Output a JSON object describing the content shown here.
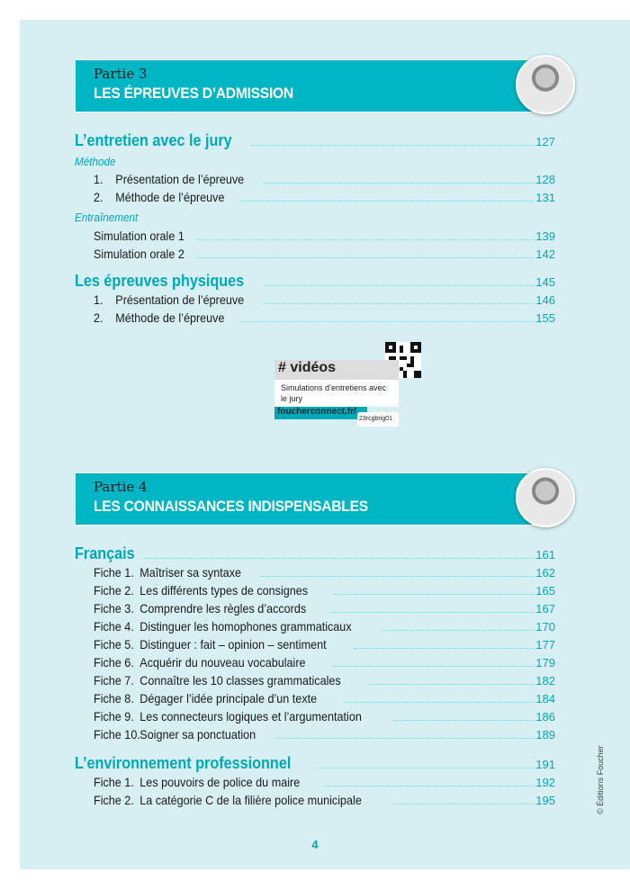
{
  "parts": [
    {
      "label": "Partie 3",
      "title": "LES ÉPREUVES D’ADMISSION"
    },
    {
      "label": "Partie 4",
      "title": "LES CONNAISSANCES INDISPENSABLES"
    }
  ],
  "toc": [
    {
      "type": "h",
      "text": "L’entretien avec le jury",
      "page": "127"
    },
    {
      "type": "sub",
      "text": "Méthode"
    },
    {
      "type": "n",
      "num": "1.",
      "text": "Présentation de l’épreuve",
      "page": "128"
    },
    {
      "type": "n",
      "num": "2.",
      "text": "Méthode de l’épreuve",
      "page": "131"
    },
    {
      "type": "sub",
      "text": "Entraînement"
    },
    {
      "type": "i",
      "text": "Simulation orale 1",
      "page": "139"
    },
    {
      "type": "i",
      "text": "Simulation orale 2",
      "page": "142"
    },
    {
      "type": "h",
      "text": "Les épreuves physiques",
      "page": "145"
    },
    {
      "type": "n",
      "num": "1.",
      "text": "Présentation de l’épreuve",
      "page": "146"
    },
    {
      "type": "n",
      "num": "2.",
      "text": "Méthode de l’épreuve",
      "page": "155"
    },
    {
      "type": "h",
      "text": "Français",
      "page": "161"
    },
    {
      "type": "f",
      "num": "Fiche 1.",
      "text": "Maîtriser sa syntaxe",
      "page": "162"
    },
    {
      "type": "f",
      "num": "Fiche 2.",
      "text": "Les différents types de consignes",
      "page": "165"
    },
    {
      "type": "f",
      "num": "Fiche 3.",
      "text": "Comprendre les règles d’accords",
      "page": "167"
    },
    {
      "type": "f",
      "num": "Fiche 4.",
      "text": "Distinguer les homophones grammaticaux",
      "page": "170"
    },
    {
      "type": "f",
      "num": "Fiche 5.",
      "text": "Distinguer : fait – opinion – sentiment",
      "page": "177"
    },
    {
      "type": "f",
      "num": "Fiche 6.",
      "text": "Acquérir du nouveau vocabulaire",
      "page": "179"
    },
    {
      "type": "f",
      "num": "Fiche 7.",
      "text": "Connaître les 10 classes grammaticales",
      "page": "182"
    },
    {
      "type": "f",
      "num": "Fiche 8.",
      "text": "Dégager l’idée principale d’un texte",
      "page": "184"
    },
    {
      "type": "f",
      "num": "Fiche 9.",
      "text": "Les connecteurs logiques et l’argumentation",
      "page": "186"
    },
    {
      "type": "f",
      "num": "Fiche 10.",
      "text": "Soigner sa ponctuation",
      "page": "189"
    },
    {
      "type": "h",
      "text": "L’environnement professionnel",
      "page": "191"
    },
    {
      "type": "f",
      "num": "Fiche 1.",
      "text": "Les pouvoirs de police du maire",
      "page": "192"
    },
    {
      "type": "f",
      "num": "Fiche 2.",
      "text": "La catégorie C de la filière police municipale",
      "page": "195"
    }
  ],
  "video": {
    "heading": "# vidéos",
    "description": "Simulations d’entretiens avec le jury",
    "link": "foucherconnect.fr/",
    "code": "23rcgbrig01"
  },
  "copyright": "© Éditions Foucher",
  "page_number": "4",
  "colors": {
    "accent": "#00b5c4",
    "background": "#d7eef2"
  }
}
